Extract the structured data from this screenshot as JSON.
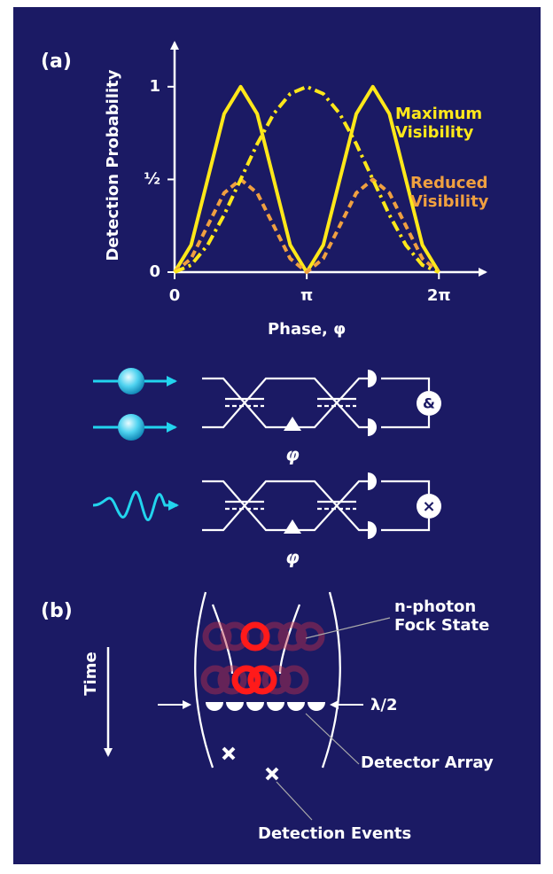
{
  "panel_a_label": "(a)",
  "chart_data": {
    "type": "line",
    "x_label": "Phase, φ",
    "y_label": "Detection Probability",
    "x": [
      0,
      0.125,
      0.25,
      0.375,
      0.5,
      0.625,
      0.75,
      0.875,
      1,
      1.125,
      1.25,
      1.375,
      1.5,
      1.625,
      1.75,
      1.875,
      2
    ],
    "xlim": [
      0,
      2.3
    ],
    "xticks": [
      0,
      {
        "value": 1,
        "label": "π"
      },
      {
        "value": 2,
        "label": "2π"
      }
    ],
    "ylim": [
      0,
      1.2
    ],
    "yticks": [
      0,
      {
        "value": 0.5,
        "label": "½"
      },
      1
    ],
    "series": [
      {
        "name": "Maximum Visibility",
        "color": "#ffe81a",
        "style": "solid",
        "values": [
          0,
          0.146,
          0.5,
          0.854,
          1,
          0.854,
          0.5,
          0.146,
          0,
          0.146,
          0.5,
          0.854,
          1,
          0.854,
          0.5,
          0.146,
          0
        ]
      },
      {
        "name": "Reduced Visibility",
        "color": "#f0a040",
        "style": "dashed",
        "values": [
          0,
          0.073,
          0.25,
          0.427,
          0.5,
          0.427,
          0.25,
          0.073,
          0,
          0.073,
          0.25,
          0.427,
          0.5,
          0.427,
          0.25,
          0.073,
          0
        ]
      },
      {
        "color": "#ffe81a",
        "style": "dashdot",
        "values": [
          0,
          0.038,
          0.146,
          0.309,
          0.5,
          0.691,
          0.854,
          0.962,
          1,
          0.962,
          0.854,
          0.691,
          0.5,
          0.309,
          0.146,
          0.038,
          0
        ]
      }
    ]
  },
  "panel_a_setups": [
    {
      "operator": "&",
      "phase": "φ"
    },
    {
      "operator": "×",
      "phase": "φ"
    }
  ],
  "panel_b": {
    "label": "(b)",
    "time": "Time",
    "fock": "n-photon Fock State",
    "width": "λ/2",
    "detector": "Detector Array",
    "events": "Detection Events"
  }
}
